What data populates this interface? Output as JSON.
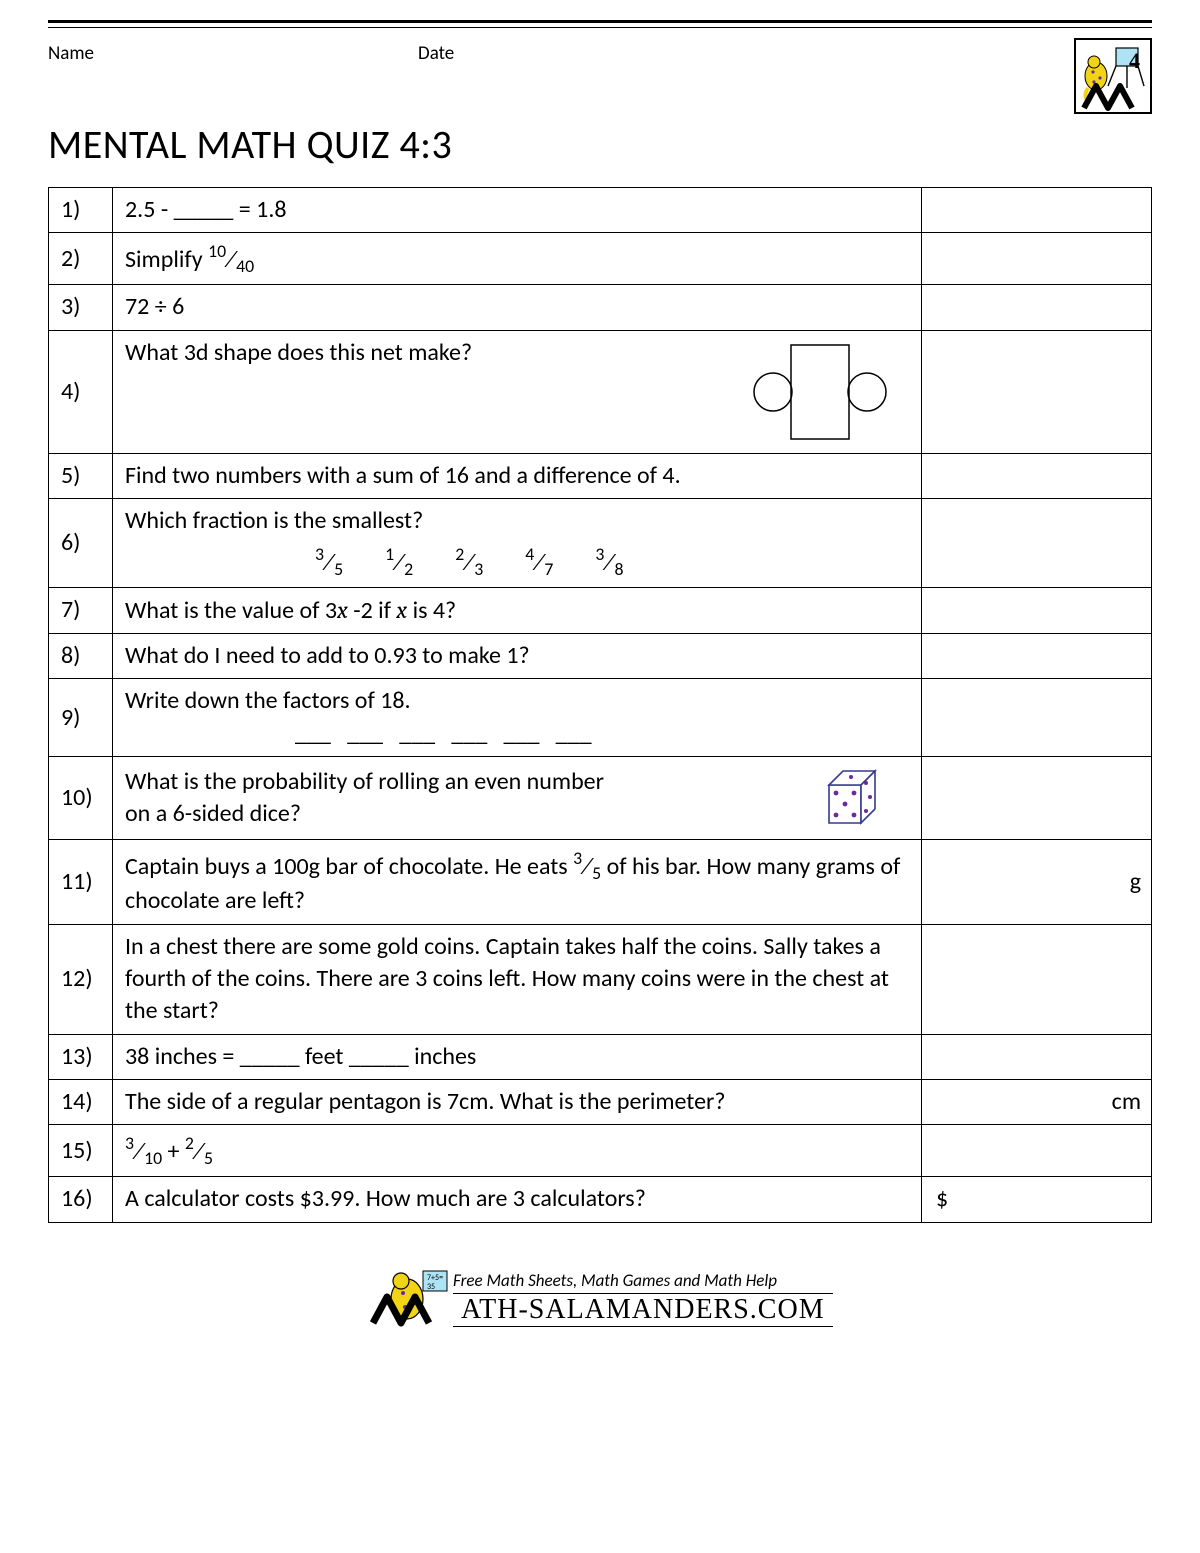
{
  "header": {
    "name_label": "Name",
    "date_label": "Date",
    "logo_number": "4"
  },
  "title": "MENTAL MATH QUIZ 4:3",
  "questions": [
    {
      "num": "1)",
      "html": "2.5 - _____ = 1.8",
      "ans_prefix": ""
    },
    {
      "num": "2)",
      "html": "Simplify <span class='frac'><span class='n'>10</span><span class='sl'>⁄</span><span class='d'>40</span></span>",
      "ans_prefix": ""
    },
    {
      "num": "3)",
      "html": "72 ÷ 6",
      "ans_prefix": ""
    },
    {
      "num": "4)",
      "html": "What 3d shape does this net make?",
      "graphic": "net",
      "tall": true,
      "valign": "top",
      "ans_prefix": ""
    },
    {
      "num": "5)",
      "html": "Find two numbers with a sum of 16 and a difference of 4.",
      "ans_prefix": ""
    },
    {
      "num": "6)",
      "html": "Which fraction is the smallest?<br><span class='fraction-row'><span class='frac'><span class='n'>3</span><span class='sl'>⁄</span><span class='d'>5</span></span><span class='frac'><span class='n'>1</span><span class='sl'>⁄</span><span class='d'>2</span></span><span class='frac'><span class='n'>2</span><span class='sl'>⁄</span><span class='d'>3</span></span><span class='frac'><span class='n'>4</span><span class='sl'>⁄</span><span class='d'>7</span></span><span class='frac'><span class='n'>3</span><span class='sl'>⁄</span><span class='d'>8</span></span></span>",
      "ans_prefix": ""
    },
    {
      "num": "7)",
      "html": "What is the value of 3<span class='italic'>x</span> -2 if <span class='italic'>x</span> is 4?",
      "ans_prefix": ""
    },
    {
      "num": "8)",
      "html": "What do I need to add to 0.93 to make 1?",
      "ans_prefix": ""
    },
    {
      "num": "9)",
      "html": "Write down the factors of 18.<br><span style='margin-left:170px;'>___&nbsp;&nbsp;&nbsp;___&nbsp;&nbsp;&nbsp;___&nbsp;&nbsp;&nbsp;___&nbsp;&nbsp;&nbsp;___&nbsp;&nbsp;&nbsp;___</span>",
      "ans_prefix": ""
    },
    {
      "num": "10)",
      "html": "What is the probability of rolling an even number<br>on a 6-sided dice?",
      "graphic": "dice",
      "ans_prefix": ""
    },
    {
      "num": "11)",
      "html": "Captain buys a 100g bar of chocolate. He eats <span class='frac'><span class='n'>3</span><span class='sl'>⁄</span><span class='d'>5</span></span> of his bar. How many grams of chocolate are left?",
      "ans_prefix": "",
      "ans_suffix": "g"
    },
    {
      "num": "12)",
      "html": "In a chest there are some gold coins. Captain takes half the coins. Sally takes a fourth of the coins. There are 3 coins left. How many coins were in the chest at the start?",
      "ans_prefix": ""
    },
    {
      "num": "13)",
      "html": "38 inches = _____ feet _____ inches",
      "ans_prefix": ""
    },
    {
      "num": "14)",
      "html": "The side of a regular pentagon is 7cm. What is the perimeter?",
      "ans_prefix": "",
      "ans_suffix": "cm"
    },
    {
      "num": "15)",
      "html": "<span class='frac'><span class='n'>3</span><span class='sl'>⁄</span><span class='d'>10</span></span> + <span class='frac'><span class='n'>2</span><span class='sl'>⁄</span><span class='d'>5</span></span>",
      "ans_prefix": ""
    },
    {
      "num": "16)",
      "html": "A calculator costs $3.99. How much are 3 calculators?",
      "ans_prefix": "$"
    }
  ],
  "footer": {
    "tagline": "Free Math Sheets, Math Games and Math Help",
    "site": "ATH-SALAMANDERS.COM"
  },
  "colors": {
    "border": "#000000",
    "salamander_body": "#f2d416",
    "salamander_spots": "#6b2aa0",
    "dice_line": "#353a8c",
    "dice_dot": "#6b2aa0"
  }
}
